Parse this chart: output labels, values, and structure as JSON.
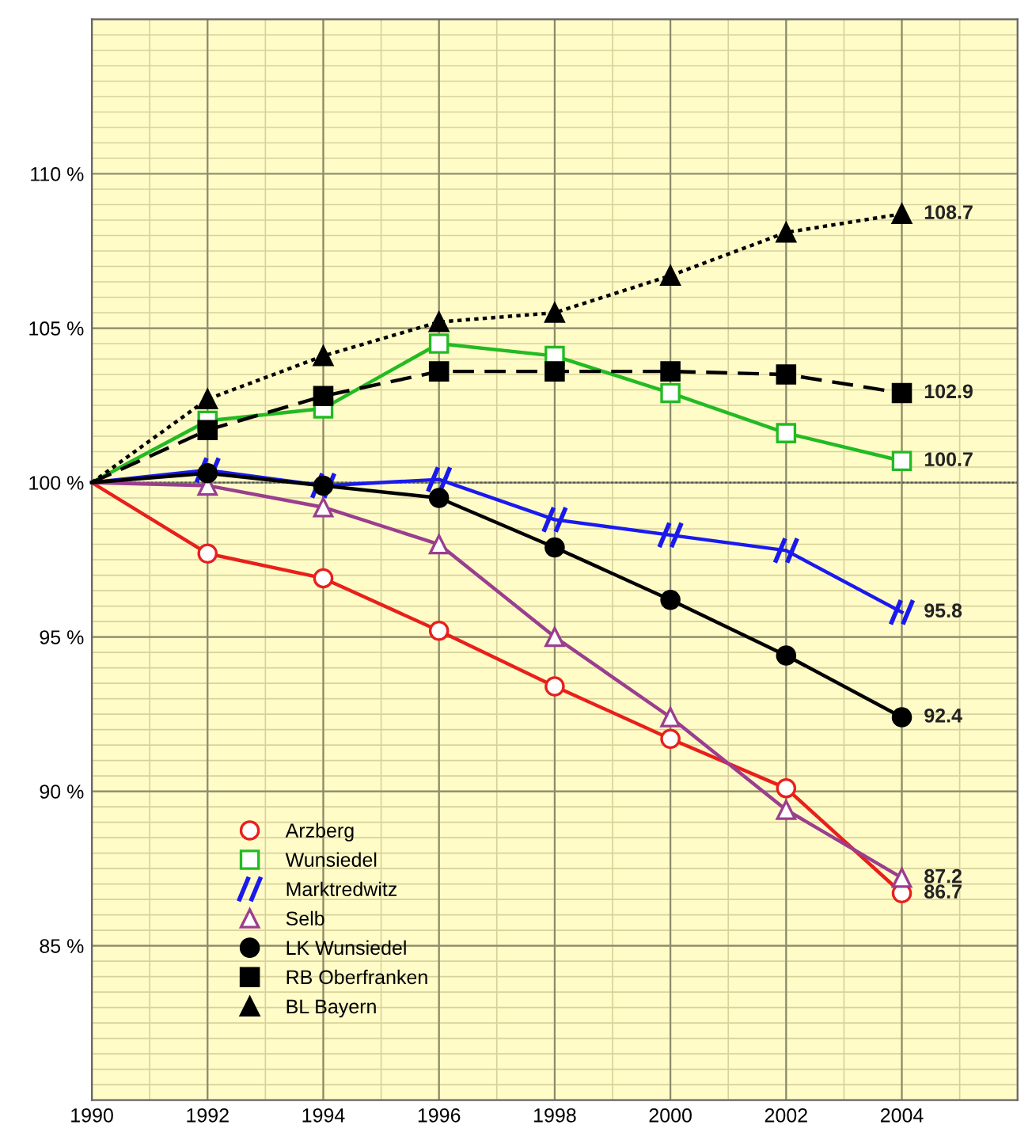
{
  "chart_data": {
    "type": "line",
    "x": [
      1990,
      1992,
      1994,
      1996,
      1998,
      2000,
      2002,
      2004
    ],
    "xlim": [
      1990,
      2006
    ],
    "xticks": [
      1990,
      1992,
      1994,
      1996,
      1998,
      2000,
      2002,
      2004
    ],
    "ylim": [
      80,
      115
    ],
    "yticks": [
      {
        "value": 85,
        "label": "85 %"
      },
      {
        "value": 90,
        "label": "90 %"
      },
      {
        "value": 95,
        "label": "95 %"
      },
      {
        "value": 100,
        "label": "100 %"
      },
      {
        "value": 105,
        "label": "105 %"
      },
      {
        "value": 110,
        "label": "110 %"
      }
    ],
    "grid": true,
    "legend": "bottom left",
    "ref_lines": [
      {
        "axis": "y",
        "value": 100,
        "color": "#555555",
        "line_style": "dotted"
      }
    ],
    "series": [
      {
        "name": "Arzberg",
        "color": "#e8201c",
        "marker": "circle",
        "line_style": "solid",
        "values": [
          100,
          97.7,
          96.9,
          95.2,
          93.4,
          91.7,
          90.1,
          86.7
        ],
        "value_labels": [
          null,
          null,
          null,
          null,
          null,
          null,
          null,
          "86.7"
        ]
      },
      {
        "name": "Wunsiedel",
        "color": "#22bb22",
        "marker": "square",
        "line_style": "solid",
        "values": [
          100,
          102.0,
          102.4,
          104.5,
          104.1,
          102.9,
          101.6,
          100.7
        ],
        "value_labels": [
          null,
          null,
          null,
          null,
          null,
          null,
          null,
          "100.7"
        ]
      },
      {
        "name": "Marktredwitz",
        "color": "#1a1aee",
        "marker": "cross",
        "line_style": "solid",
        "values": [
          100,
          100.4,
          99.9,
          100.1,
          98.8,
          98.3,
          97.8,
          95.8
        ],
        "value_labels": [
          null,
          null,
          null,
          null,
          null,
          null,
          null,
          "95.8"
        ]
      },
      {
        "name": "Selb",
        "color": "#9a3e8e",
        "marker": "triangle",
        "line_style": "solid",
        "values": [
          100,
          99.9,
          99.2,
          98.0,
          95.0,
          92.4,
          89.4,
          87.2
        ],
        "value_labels": [
          null,
          null,
          null,
          null,
          null,
          null,
          null,
          "87.2"
        ]
      },
      {
        "name": "LK Wunsiedel",
        "color": "#000000",
        "marker": "circle",
        "line_style": "solid",
        "values": [
          100,
          100.3,
          99.9,
          99.5,
          97.9,
          96.2,
          94.4,
          92.4
        ],
        "value_labels": [
          null,
          null,
          null,
          null,
          null,
          null,
          null,
          "92.4"
        ]
      },
      {
        "name": "RB Oberfranken",
        "color": "#000000",
        "marker": "square",
        "line_style": "dashed",
        "values": [
          100,
          101.7,
          102.8,
          103.6,
          103.6,
          103.6,
          103.5,
          102.9
        ],
        "value_labels": [
          null,
          null,
          null,
          null,
          null,
          null,
          null,
          "102.9"
        ]
      },
      {
        "name": "BL Bayern",
        "color": "#000000",
        "marker": "triangle",
        "line_style": "dotted",
        "values": [
          100,
          102.7,
          104.1,
          105.2,
          105.5,
          106.7,
          108.1,
          108.7
        ],
        "value_labels": [
          null,
          null,
          null,
          null,
          null,
          null,
          null,
          "108.7"
        ]
      }
    ]
  }
}
